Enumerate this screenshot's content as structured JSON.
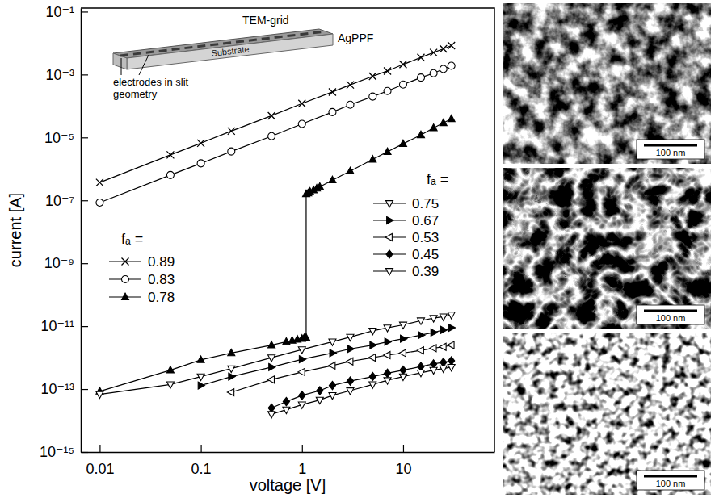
{
  "chart_data": {
    "type": "line",
    "x_label": "voltage [V]",
    "y_label": "current [A]",
    "log": true,
    "grid": false,
    "xlim": [
      0.0065,
      80
    ],
    "ylim": [
      1e-15,
      0.13
    ],
    "xticks": [
      0.01,
      0.1,
      1,
      10
    ],
    "yticks": [
      {
        "value": 0.1,
        "label": "10⁻¹"
      },
      {
        "value": 0.001,
        "label": "10⁻³"
      },
      {
        "value": 1e-05,
        "label": "10⁻⁵"
      },
      {
        "value": 1e-07,
        "label": "10⁻⁷"
      },
      {
        "value": 1e-09,
        "label": "10⁻⁹"
      },
      {
        "value": 1e-11,
        "label": "10⁻¹¹"
      },
      {
        "value": 1e-13,
        "label": "10⁻¹³"
      },
      {
        "value": 1e-15,
        "label": "10⁻¹⁵"
      }
    ],
    "legend_titles": [
      "fₐ =",
      "fₐ ="
    ],
    "annotations": [
      "TEM-grid",
      "AgPPF",
      "Substrate",
      "electrodes in slit geometry"
    ],
    "series": [
      {
        "name": "0.89",
        "color": "#000000",
        "marker": "x",
        "line_style": "solid",
        "x": [
          0.01,
          0.05,
          0.1,
          0.2,
          0.5,
          1,
          2,
          3,
          5,
          7,
          10,
          15,
          20,
          25,
          30
        ],
        "values": [
          3.7e-07,
          2.8e-06,
          6.6e-06,
          1.6e-05,
          4.9e-05,
          0.00012,
          0.00028,
          0.00047,
          0.00088,
          0.0013,
          0.0021,
          0.0035,
          0.005,
          0.0066,
          0.0083
        ]
      },
      {
        "name": "0.83",
        "color": "#000000",
        "marker": "circle-open",
        "line_style": "solid",
        "x": [
          0.01,
          0.05,
          0.1,
          0.2,
          0.5,
          1,
          2,
          3,
          5,
          7,
          10,
          15,
          20,
          25,
          30
        ],
        "values": [
          8.5e-08,
          6.4e-07,
          1.5e-06,
          3.6e-06,
          1.1e-05,
          2.7e-05,
          6.4e-05,
          0.00011,
          0.0002,
          0.0003,
          0.00048,
          0.0008,
          0.0011,
          0.0015,
          0.0019
        ]
      },
      {
        "name": "0.78",
        "color": "#000000",
        "marker": "triangle-up",
        "line_style": "solid",
        "x": [
          0.01,
          0.05,
          0.1,
          0.2,
          0.5,
          0.7,
          0.8,
          0.9,
          1,
          1.05,
          1.1,
          1.1,
          1.15,
          1.2,
          1.3,
          1.4,
          1.5,
          2,
          3,
          5,
          7,
          10,
          15,
          20,
          25,
          30
        ],
        "values": [
          8.5e-14,
          4e-13,
          8.5e-13,
          1.4e-12,
          2.5e-12,
          3.2e-12,
          3.5e-12,
          3.8e-12,
          4e-12,
          4.2e-12,
          4.3e-12,
          1.6e-07,
          1.7e-07,
          1.9e-07,
          2.1e-07,
          2.4e-07,
          2.7e-07,
          4.4e-07,
          8.5e-07,
          2e-06,
          3.5e-06,
          6.3e-06,
          1.2e-05,
          2e-05,
          2.9e-05,
          3.9e-05
        ]
      },
      {
        "name": "0.75",
        "color": "#000000",
        "marker": "triangle-down-open",
        "line_style": "solid",
        "x": [
          0.01,
          0.05,
          0.1,
          0.2,
          0.5,
          1,
          2,
          3,
          5,
          7,
          10,
          15,
          20,
          25,
          30
        ],
        "values": [
          6.8e-14,
          1.4e-13,
          2.5e-13,
          4.5e-13,
          1e-12,
          1.8e-12,
          3.2e-12,
          4.5e-12,
          7.1e-12,
          8.9e-12,
          1.1e-11,
          1.5e-11,
          1.8e-11,
          2e-11,
          2.3e-11
        ]
      },
      {
        "name": "0.67",
        "color": "#000000",
        "marker": "triangle-right",
        "line_style": "solid",
        "x": [
          0.1,
          0.2,
          0.5,
          1,
          2,
          3,
          5,
          7,
          10,
          15,
          20,
          25,
          30
        ],
        "values": [
          1.3e-13,
          2.5e-13,
          5e-13,
          8.9e-13,
          1.4e-12,
          1.9e-12,
          2.5e-12,
          3.2e-12,
          4e-12,
          5.2e-12,
          6.3e-12,
          7.6e-12,
          8.9e-12
        ]
      },
      {
        "name": "0.53",
        "color": "#000000",
        "marker": "triangle-left-open",
        "line_style": "solid",
        "x": [
          0.2,
          0.5,
          1,
          2,
          3,
          5,
          7,
          10,
          15,
          20,
          25,
          30
        ],
        "values": [
          7.9e-14,
          2e-13,
          3.5e-13,
          5.6e-13,
          7.6e-13,
          1e-12,
          1.2e-12,
          1.4e-12,
          1.7e-12,
          2e-12,
          2.2e-12,
          2.5e-12
        ]
      },
      {
        "name": "0.45",
        "color": "#000000",
        "marker": "diamond",
        "line_style": "solid",
        "x": [
          0.5,
          0.7,
          1,
          1.5,
          2,
          3,
          5,
          7,
          10,
          15,
          20,
          25,
          30
        ],
        "values": [
          2.5e-14,
          4e-14,
          6.3e-14,
          8.9e-14,
          1.3e-13,
          1.8e-13,
          2.5e-13,
          3.2e-13,
          4e-13,
          5.2e-13,
          6.3e-13,
          7.1e-13,
          7.9e-13
        ]
      },
      {
        "name": "0.39",
        "color": "#000000",
        "marker": "triangle-down-open",
        "line_style": "solid",
        "x": [
          0.5,
          0.7,
          1,
          1.5,
          2,
          3,
          5,
          7,
          10,
          15,
          20,
          25,
          30
        ],
        "values": [
          1.6e-14,
          2.2e-14,
          3.2e-14,
          4.5e-14,
          6.3e-14,
          8.9e-14,
          1.4e-13,
          1.9e-13,
          2.5e-13,
          3.3e-13,
          4e-13,
          4.5e-13,
          5e-13
        ]
      }
    ]
  },
  "images": [
    {
      "scale_bar_label": "100 nm"
    },
    {
      "scale_bar_label": "100 nm"
    },
    {
      "scale_bar_label": "100 nm"
    }
  ]
}
